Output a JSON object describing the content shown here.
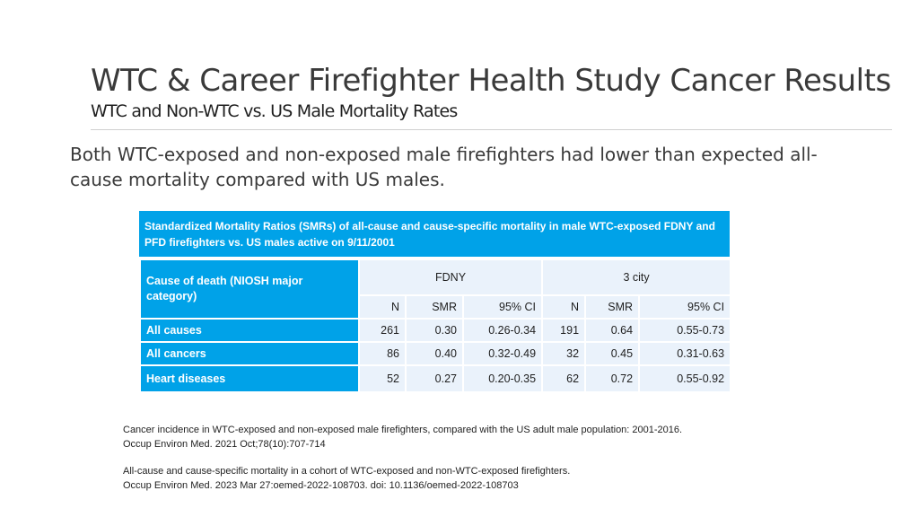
{
  "title": "WTC & Career Firefighter Health Study Cancer Results",
  "subtitle": "WTC and Non-WTC vs. US Male Mortality Rates",
  "body": "Both WTC-exposed and non-exposed male firefighters had lower than expected all-cause mortality compared with US males.",
  "table": {
    "caption": "Standardized Mortality Ratios (SMRs) of all-cause and cause-specific mortality in male WTC-exposed FDNY and PFD firefighters vs. US males active on 9/11/2001",
    "cause_header": "Cause of death (NIOSH major category)",
    "groups": [
      "FDNY",
      "3 city"
    ],
    "subheaders": [
      "N",
      "SMR",
      "95% CI",
      "N",
      "SMR",
      "95% CI"
    ],
    "rows": [
      {
        "cause": "All causes",
        "cells": [
          "261",
          "0.30",
          "0.26-0.34",
          "191",
          "0.64",
          "0.55-0.73"
        ]
      },
      {
        "cause": "All cancers",
        "cells": [
          "86",
          "0.40",
          "0.32-0.49",
          "32",
          "0.45",
          "0.31-0.63"
        ]
      },
      {
        "cause": "Heart diseases",
        "cells": [
          "52",
          "0.27",
          "0.20-0.35",
          "62",
          "0.72",
          "0.55-0.92"
        ]
      }
    ]
  },
  "references": [
    {
      "line1": "Cancer incidence in WTC-exposed and non-exposed male firefighters, compared with the US adult male population: 2001-2016.",
      "line2": "Occup Environ Med. 2021 Oct;78(10):707-714"
    },
    {
      "line1": "All-cause and cause-specific mortality in a cohort of WTC-exposed and non-WTC-exposed firefighters.",
      "line2": "Occup Environ Med. 2023 Mar 27:oemed-2022-108703. doi: 10.1136/oemed-2022-108703"
    }
  ]
}
